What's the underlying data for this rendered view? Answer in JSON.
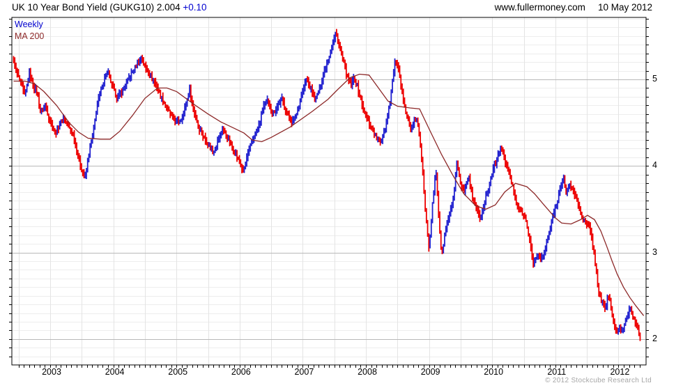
{
  "header": {
    "title_main": "UK 10 Year Bond Yield (GUKG10) 2.004 ",
    "title_change": "+0.10",
    "site": "www.fullermoney.com",
    "date": "10 May 2012"
  },
  "legend": {
    "series1": "Weekly",
    "series2": "MA 200"
  },
  "footer": {
    "copyright": "© 2012 Stockcube Research Ltd"
  },
  "colors": {
    "up_bar": "#2222cf",
    "down_bar": "#ed0000",
    "ma_line": "#8c2828",
    "grid_minor": "#ededed",
    "grid_major": "#b8b8b8",
    "grid_vertical": "#e4e4e4",
    "axis": "#000000",
    "change_text": "#0000d0"
  },
  "chart_data": {
    "type": "bar",
    "subtype": "weekly-ohlc-candles-with-ma",
    "title": "UK 10 Year Bond Yield (GUKG10)",
    "last_value": 2.004,
    "change": "+0.10",
    "interval": "Weekly",
    "x_range": [
      2002.42,
      2012.4
    ],
    "y_range": [
      1.7,
      5.72
    ],
    "y_ticks": [
      5,
      4,
      3,
      2
    ],
    "y_minor_step": 0.1,
    "x_ticks": [
      2003,
      2004,
      2005,
      2006,
      2007,
      2008,
      2009,
      2010,
      2011,
      2012
    ],
    "x_grid_step": 0.5,
    "grid": "on",
    "legend_position": "top-left-inside",
    "series": [
      {
        "name": "Weekly",
        "type": "ohlc-bars",
        "color_up": "#2222cf",
        "color_down": "#ed0000",
        "points": [
          [
            2002.42,
            5.22
          ],
          [
            2002.46,
            5.1
          ],
          [
            2002.5,
            5.02
          ],
          [
            2002.56,
            4.9
          ],
          [
            2002.6,
            4.8
          ],
          [
            2002.67,
            5.07
          ],
          [
            2002.72,
            4.95
          ],
          [
            2002.79,
            4.85
          ],
          [
            2002.85,
            4.62
          ],
          [
            2002.92,
            4.7
          ],
          [
            2003.0,
            4.52
          ],
          [
            2003.08,
            4.37
          ],
          [
            2003.15,
            4.48
          ],
          [
            2003.21,
            4.55
          ],
          [
            2003.29,
            4.45
          ],
          [
            2003.37,
            4.35
          ],
          [
            2003.44,
            4.12
          ],
          [
            2003.5,
            3.95
          ],
          [
            2003.55,
            3.85
          ],
          [
            2003.6,
            4.08
          ],
          [
            2003.67,
            4.35
          ],
          [
            2003.75,
            4.72
          ],
          [
            2003.83,
            4.95
          ],
          [
            2003.91,
            5.1
          ],
          [
            2003.98,
            4.92
          ],
          [
            2004.06,
            4.78
          ],
          [
            2004.15,
            4.88
          ],
          [
            2004.25,
            5.02
          ],
          [
            2004.33,
            5.12
          ],
          [
            2004.44,
            5.25
          ],
          [
            2004.52,
            5.12
          ],
          [
            2004.6,
            5.02
          ],
          [
            2004.67,
            4.95
          ],
          [
            2004.75,
            4.8
          ],
          [
            2004.83,
            4.7
          ],
          [
            2004.92,
            4.57
          ],
          [
            2005.0,
            4.5
          ],
          [
            2005.08,
            4.55
          ],
          [
            2005.15,
            4.7
          ],
          [
            2005.21,
            4.88
          ],
          [
            2005.27,
            4.65
          ],
          [
            2005.35,
            4.45
          ],
          [
            2005.44,
            4.32
          ],
          [
            2005.52,
            4.22
          ],
          [
            2005.58,
            4.16
          ],
          [
            2005.65,
            4.28
          ],
          [
            2005.73,
            4.44
          ],
          [
            2005.81,
            4.32
          ],
          [
            2005.88,
            4.22
          ],
          [
            2005.96,
            4.1
          ],
          [
            2006.06,
            3.93
          ],
          [
            2006.13,
            4.15
          ],
          [
            2006.21,
            4.32
          ],
          [
            2006.29,
            4.42
          ],
          [
            2006.38,
            4.7
          ],
          [
            2006.44,
            4.75
          ],
          [
            2006.52,
            4.6
          ],
          [
            2006.6,
            4.7
          ],
          [
            2006.67,
            4.77
          ],
          [
            2006.75,
            4.62
          ],
          [
            2006.83,
            4.5
          ],
          [
            2006.9,
            4.6
          ],
          [
            2006.98,
            4.82
          ],
          [
            2007.06,
            5.0
          ],
          [
            2007.15,
            4.85
          ],
          [
            2007.2,
            4.76
          ],
          [
            2007.27,
            4.9
          ],
          [
            2007.35,
            5.12
          ],
          [
            2007.44,
            5.32
          ],
          [
            2007.52,
            5.54
          ],
          [
            2007.58,
            5.38
          ],
          [
            2007.65,
            5.18
          ],
          [
            2007.71,
            5.02
          ],
          [
            2007.77,
            4.92
          ],
          [
            2007.81,
            5.03
          ],
          [
            2007.87,
            4.9
          ],
          [
            2007.94,
            4.7
          ],
          [
            2008.0,
            4.56
          ],
          [
            2008.08,
            4.46
          ],
          [
            2008.16,
            4.32
          ],
          [
            2008.23,
            4.27
          ],
          [
            2008.31,
            4.45
          ],
          [
            2008.38,
            4.75
          ],
          [
            2008.44,
            5.1
          ],
          [
            2008.47,
            5.24
          ],
          [
            2008.52,
            5.08
          ],
          [
            2008.58,
            4.82
          ],
          [
            2008.65,
            4.58
          ],
          [
            2008.71,
            4.42
          ],
          [
            2008.77,
            4.52
          ],
          [
            2008.83,
            4.48
          ],
          [
            2008.88,
            4.1
          ],
          [
            2008.94,
            3.5
          ],
          [
            2009.0,
            3.06
          ],
          [
            2009.06,
            3.6
          ],
          [
            2009.11,
            3.95
          ],
          [
            2009.15,
            3.45
          ],
          [
            2009.2,
            2.94
          ],
          [
            2009.25,
            3.22
          ],
          [
            2009.31,
            3.4
          ],
          [
            2009.38,
            3.6
          ],
          [
            2009.44,
            4.02
          ],
          [
            2009.5,
            3.78
          ],
          [
            2009.56,
            3.68
          ],
          [
            2009.63,
            3.88
          ],
          [
            2009.69,
            3.62
          ],
          [
            2009.75,
            3.52
          ],
          [
            2009.81,
            3.4
          ],
          [
            2009.88,
            3.58
          ],
          [
            2009.94,
            3.75
          ],
          [
            2010.0,
            3.92
          ],
          [
            2010.08,
            4.08
          ],
          [
            2010.13,
            4.22
          ],
          [
            2010.19,
            4.1
          ],
          [
            2010.25,
            3.95
          ],
          [
            2010.31,
            3.8
          ],
          [
            2010.38,
            3.58
          ],
          [
            2010.44,
            3.5
          ],
          [
            2010.5,
            3.42
          ],
          [
            2010.56,
            3.3
          ],
          [
            2010.6,
            3.1
          ],
          [
            2010.65,
            2.85
          ],
          [
            2010.71,
            2.98
          ],
          [
            2010.77,
            2.92
          ],
          [
            2010.83,
            3.0
          ],
          [
            2010.9,
            3.22
          ],
          [
            2010.96,
            3.42
          ],
          [
            2011.02,
            3.55
          ],
          [
            2011.08,
            3.75
          ],
          [
            2011.12,
            3.9
          ],
          [
            2011.17,
            3.68
          ],
          [
            2011.23,
            3.8
          ],
          [
            2011.29,
            3.7
          ],
          [
            2011.35,
            3.58
          ],
          [
            2011.42,
            3.42
          ],
          [
            2011.48,
            3.33
          ],
          [
            2011.54,
            3.28
          ],
          [
            2011.58,
            3.15
          ],
          [
            2011.63,
            2.9
          ],
          [
            2011.67,
            2.63
          ],
          [
            2011.71,
            2.48
          ],
          [
            2011.75,
            2.42
          ],
          [
            2011.79,
            2.32
          ],
          [
            2011.83,
            2.52
          ],
          [
            2011.87,
            2.42
          ],
          [
            2011.9,
            2.28
          ],
          [
            2011.94,
            2.15
          ],
          [
            2011.97,
            2.06
          ],
          [
            2012.02,
            2.12
          ],
          [
            2012.06,
            2.1
          ],
          [
            2012.1,
            2.2
          ],
          [
            2012.15,
            2.3
          ],
          [
            2012.19,
            2.38
          ],
          [
            2012.23,
            2.25
          ],
          [
            2012.27,
            2.18
          ],
          [
            2012.31,
            2.12
          ],
          [
            2012.35,
            2.0
          ]
        ]
      },
      {
        "name": "MA 200",
        "type": "line",
        "color": "#8c2828",
        "points": [
          [
            2002.42,
            4.98
          ],
          [
            2002.6,
            4.98
          ],
          [
            2002.75,
            4.95
          ],
          [
            2002.9,
            4.86
          ],
          [
            2003.1,
            4.7
          ],
          [
            2003.3,
            4.5
          ],
          [
            2003.45,
            4.39
          ],
          [
            2003.6,
            4.32
          ],
          [
            2003.8,
            4.31
          ],
          [
            2003.95,
            4.31
          ],
          [
            2004.1,
            4.4
          ],
          [
            2004.3,
            4.58
          ],
          [
            2004.5,
            4.78
          ],
          [
            2004.7,
            4.9
          ],
          [
            2004.85,
            4.9
          ],
          [
            2005.0,
            4.86
          ],
          [
            2005.3,
            4.7
          ],
          [
            2005.5,
            4.6
          ],
          [
            2005.7,
            4.51
          ],
          [
            2005.9,
            4.44
          ],
          [
            2006.07,
            4.38
          ],
          [
            2006.2,
            4.3
          ],
          [
            2006.35,
            4.28
          ],
          [
            2006.5,
            4.33
          ],
          [
            2006.8,
            4.45
          ],
          [
            2007.15,
            4.63
          ],
          [
            2007.4,
            4.77
          ],
          [
            2007.55,
            4.88
          ],
          [
            2007.75,
            5.02
          ],
          [
            2007.9,
            5.06
          ],
          [
            2008.05,
            5.05
          ],
          [
            2008.2,
            4.9
          ],
          [
            2008.35,
            4.75
          ],
          [
            2008.5,
            4.69
          ],
          [
            2008.7,
            4.67
          ],
          [
            2008.85,
            4.66
          ],
          [
            2009.02,
            4.4
          ],
          [
            2009.2,
            4.13
          ],
          [
            2009.38,
            3.89
          ],
          [
            2009.55,
            3.68
          ],
          [
            2009.74,
            3.54
          ],
          [
            2009.9,
            3.5
          ],
          [
            2010.05,
            3.55
          ],
          [
            2010.2,
            3.7
          ],
          [
            2010.37,
            3.8
          ],
          [
            2010.55,
            3.76
          ],
          [
            2010.67,
            3.68
          ],
          [
            2010.82,
            3.55
          ],
          [
            2011.0,
            3.4
          ],
          [
            2011.1,
            3.34
          ],
          [
            2011.25,
            3.33
          ],
          [
            2011.4,
            3.38
          ],
          [
            2011.51,
            3.43
          ],
          [
            2011.62,
            3.38
          ],
          [
            2011.72,
            3.25
          ],
          [
            2011.81,
            3.08
          ],
          [
            2011.9,
            2.9
          ],
          [
            2011.98,
            2.75
          ],
          [
            2012.08,
            2.6
          ],
          [
            2012.18,
            2.48
          ],
          [
            2012.28,
            2.38
          ],
          [
            2012.4,
            2.27
          ]
        ]
      }
    ]
  }
}
